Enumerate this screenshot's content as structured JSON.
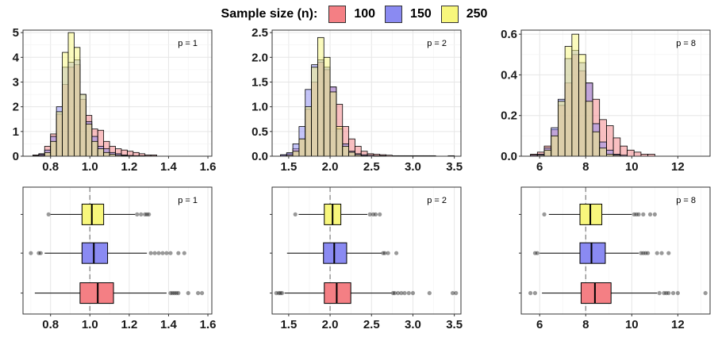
{
  "legend": {
    "title": "Sample size (n):",
    "items": [
      {
        "label": "100",
        "color": "#f47f84"
      },
      {
        "label": "150",
        "color": "#8a8af2"
      },
      {
        "label": "250",
        "color": "#f8f77c"
      }
    ]
  },
  "chart_data": [
    {
      "type": "histogram",
      "panel": "hist-p1",
      "annotation": "p = 1",
      "xlim": [
        0.66,
        1.62
      ],
      "ylim": [
        0,
        5.1
      ],
      "xticks": [
        0.8,
        1.0,
        1.2,
        1.4,
        1.6
      ],
      "xtick_labels": [
        "0.8",
        "1.0",
        "1.2",
        "1.4",
        "1.6"
      ],
      "yticks": [
        0,
        1,
        2,
        3,
        4,
        5
      ],
      "ytick_labels": [
        "0",
        "1",
        "2",
        "3",
        "4",
        "5"
      ],
      "bins": {
        "start": 0.71,
        "width": 0.03
      },
      "series": [
        {
          "name": "100",
          "color": "#f47f84",
          "values": [
            0.05,
            0.1,
            0.4,
            0.9,
            1.7,
            2.9,
            3.6,
            3.7,
            2.3,
            1.65,
            1.1,
            1.05,
            0.6,
            0.4,
            0.3,
            0.25,
            0.2,
            0.15,
            0.1,
            0.05,
            0.05
          ]
        },
        {
          "name": "150",
          "color": "#8a8af2",
          "values": [
            0.02,
            0.08,
            0.25,
            0.8,
            2.0,
            3.6,
            3.8,
            3.9,
            2.5,
            1.4,
            0.8,
            0.4,
            0.3,
            0.15,
            0.1,
            0.05,
            0.03,
            0.02,
            0.02,
            0.01,
            0.01
          ]
        },
        {
          "name": "250",
          "color": "#f8f77c",
          "values": [
            0.01,
            0.03,
            0.15,
            0.6,
            1.8,
            4.2,
            5.0,
            4.4,
            2.5,
            1.3,
            0.6,
            0.3,
            0.15,
            0.08,
            0.04,
            0.02,
            0.01,
            0.01,
            0.01,
            0.0,
            0.0
          ]
        }
      ]
    },
    {
      "type": "histogram",
      "panel": "hist-p2",
      "annotation": "p = 2",
      "xlim": [
        1.3,
        3.58
      ],
      "ylim": [
        0,
        2.55
      ],
      "xticks": [
        1.5,
        2.0,
        2.5,
        3.0,
        3.5
      ],
      "xtick_labels": [
        "1.5",
        "2.0",
        "2.5",
        "3.0",
        "3.5"
      ],
      "yticks": [
        0,
        0.5,
        1.0,
        1.5,
        2.0,
        2.5
      ],
      "ytick_labels": [
        "0.0",
        "0.5",
        "1.0",
        "1.5",
        "2.0",
        "2.5"
      ],
      "bins": {
        "start": 1.4,
        "width": 0.075
      },
      "series": [
        {
          "name": "100",
          "color": "#f47f84",
          "values": [
            0.02,
            0.05,
            0.15,
            0.35,
            0.95,
            1.5,
            1.9,
            1.75,
            1.4,
            1.05,
            0.6,
            0.35,
            0.2,
            0.1,
            0.05,
            0.04,
            0.03,
            0.02,
            0.01,
            0.01,
            0.01,
            0.01,
            0.01,
            0.01,
            0.01,
            0.0,
            0.0,
            0.01
          ]
        },
        {
          "name": "150",
          "color": "#8a8af2",
          "values": [
            0.03,
            0.07,
            0.25,
            0.6,
            1.35,
            1.85,
            1.95,
            1.8,
            1.4,
            0.55,
            0.25,
            0.1,
            0.05,
            0.03,
            0.02,
            0.01,
            0.01,
            0.0,
            0.0,
            0.0,
            0.0,
            0.0,
            0.0,
            0.0,
            0.0,
            0.0,
            0.0,
            0.0
          ]
        },
        {
          "name": "250",
          "color": "#f8f77c",
          "values": [
            0.0,
            0.02,
            0.1,
            0.35,
            1.0,
            1.8,
            2.4,
            2.0,
            1.3,
            0.6,
            0.2,
            0.08,
            0.03,
            0.01,
            0.0,
            0.0,
            0.0,
            0.0,
            0.0,
            0.0,
            0.0,
            0.0,
            0.0,
            0.0,
            0.0,
            0.0,
            0.0,
            0.0
          ]
        }
      ]
    },
    {
      "type": "histogram",
      "panel": "hist-p8",
      "annotation": "p = 8",
      "xlim": [
        5.2,
        13.4
      ],
      "ylim": [
        0,
        0.62
      ],
      "xticks": [
        6,
        8,
        10,
        12
      ],
      "xtick_labels": [
        "6",
        "8",
        "10",
        "12"
      ],
      "yticks": [
        0,
        0.2,
        0.4,
        0.6
      ],
      "ytick_labels": [
        "0.0",
        "0.2",
        "0.4",
        "0.6"
      ],
      "bins": {
        "start": 5.6,
        "width": 0.3
      },
      "series": [
        {
          "name": "100",
          "color": "#f47f84",
          "values": [
            0.01,
            0.02,
            0.05,
            0.13,
            0.25,
            0.36,
            0.5,
            0.42,
            0.36,
            0.28,
            0.18,
            0.15,
            0.09,
            0.05,
            0.03,
            0.02,
            0.01,
            0.01,
            0.0,
            0.0,
            0.0,
            0.0,
            0.0,
            0.0,
            0.0
          ]
        },
        {
          "name": "150",
          "color": "#8a8af2",
          "values": [
            0.005,
            0.01,
            0.04,
            0.14,
            0.28,
            0.48,
            0.52,
            0.46,
            0.36,
            0.16,
            0.07,
            0.03,
            0.01,
            0.005,
            0.0,
            0.0,
            0.0,
            0.0,
            0.0,
            0.0,
            0.0,
            0.0,
            0.0,
            0.0,
            0.0
          ]
        },
        {
          "name": "250",
          "color": "#f8f77c",
          "values": [
            0.0,
            0.005,
            0.03,
            0.1,
            0.27,
            0.54,
            0.6,
            0.5,
            0.27,
            0.12,
            0.04,
            0.01,
            0.005,
            0.0,
            0.0,
            0.0,
            0.0,
            0.0,
            0.0,
            0.0,
            0.0,
            0.0,
            0.0,
            0.0,
            0.0
          ]
        }
      ]
    },
    {
      "type": "boxplot",
      "panel": "box-p1",
      "annotation": "p = 1",
      "xlim": [
        0.66,
        1.62
      ],
      "refline": 1.0,
      "xticks": [
        0.8,
        1.0,
        1.2,
        1.4,
        1.6
      ],
      "xtick_labels": [
        "0.8",
        "1.0",
        "1.2",
        "1.4",
        "1.6"
      ],
      "series": [
        {
          "name": "250",
          "color": "#f8f77c",
          "q1": 0.96,
          "median": 1.01,
          "q3": 1.07,
          "whisker_low": 0.8,
          "whisker_high": 1.23,
          "outliers": [
            0.79,
            1.24,
            1.26,
            1.28,
            1.29,
            1.3
          ]
        },
        {
          "name": "150",
          "color": "#8a8af2",
          "q1": 0.96,
          "median": 1.02,
          "q3": 1.09,
          "whisker_low": 0.77,
          "whisker_high": 1.29,
          "outliers": [
            0.7,
            0.74,
            0.75,
            1.31,
            1.33,
            1.35,
            1.37,
            1.39,
            1.41,
            1.45,
            1.48
          ]
        },
        {
          "name": "100",
          "color": "#f47f84",
          "q1": 0.95,
          "median": 1.04,
          "q3": 1.12,
          "whisker_low": 0.72,
          "whisker_high": 1.39,
          "outliers": [
            1.41,
            1.42,
            1.43,
            1.44,
            1.45,
            1.5,
            1.55,
            1.57
          ]
        }
      ]
    },
    {
      "type": "boxplot",
      "panel": "box-p2",
      "annotation": "p = 2",
      "xlim": [
        1.3,
        3.58
      ],
      "refline": 2.0,
      "xticks": [
        1.5,
        2.0,
        2.5,
        3.0,
        3.5
      ],
      "xtick_labels": [
        "1.5",
        "2.0",
        "2.5",
        "3.0",
        "3.5"
      ],
      "series": [
        {
          "name": "250",
          "color": "#f8f77c",
          "q1": 1.93,
          "median": 2.03,
          "q3": 2.13,
          "whisker_low": 1.62,
          "whisker_high": 2.45,
          "outliers": [
            1.58,
            2.48,
            2.52,
            2.55,
            2.6
          ]
        },
        {
          "name": "150",
          "color": "#8a8af2",
          "q1": 1.92,
          "median": 2.05,
          "q3": 2.2,
          "whisker_low": 1.48,
          "whisker_high": 2.62,
          "outliers": [
            2.64,
            2.66,
            2.7,
            2.8
          ]
        },
        {
          "name": "100",
          "color": "#f47f84",
          "q1": 1.93,
          "median": 2.08,
          "q3": 2.25,
          "whisker_low": 1.45,
          "whisker_high": 2.74,
          "outliers": [
            1.35,
            1.38,
            1.4,
            1.42,
            2.76,
            2.78,
            2.82,
            2.86,
            2.9,
            2.95,
            3.0,
            3.2,
            3.48,
            3.52
          ]
        }
      ]
    },
    {
      "type": "boxplot",
      "panel": "box-p8",
      "annotation": "p = 8",
      "xlim": [
        5.2,
        13.4
      ],
      "refline": 8.0,
      "xticks": [
        6,
        8,
        10,
        12
      ],
      "xtick_labels": [
        "6",
        "8",
        "10",
        "12"
      ],
      "series": [
        {
          "name": "250",
          "color": "#f8f77c",
          "q1": 7.75,
          "median": 8.2,
          "q3": 8.7,
          "whisker_low": 6.4,
          "whisker_high": 10.0,
          "outliers": [
            6.2,
            10.1,
            10.2,
            10.3,
            10.5,
            10.8,
            11.0
          ]
        },
        {
          "name": "150",
          "color": "#8a8af2",
          "q1": 7.75,
          "median": 8.25,
          "q3": 8.85,
          "whisker_low": 6.0,
          "whisker_high": 10.3,
          "outliers": [
            5.8,
            5.9,
            10.4,
            10.5,
            10.6,
            10.7,
            11.1,
            11.3,
            11.6
          ]
        },
        {
          "name": "100",
          "color": "#f47f84",
          "q1": 7.8,
          "median": 8.4,
          "q3": 9.1,
          "whisker_low": 6.1,
          "whisker_high": 11.1,
          "outliers": [
            5.6,
            5.8,
            11.2,
            11.4,
            11.5,
            11.6,
            11.8,
            12.0,
            13.2
          ]
        }
      ]
    }
  ]
}
